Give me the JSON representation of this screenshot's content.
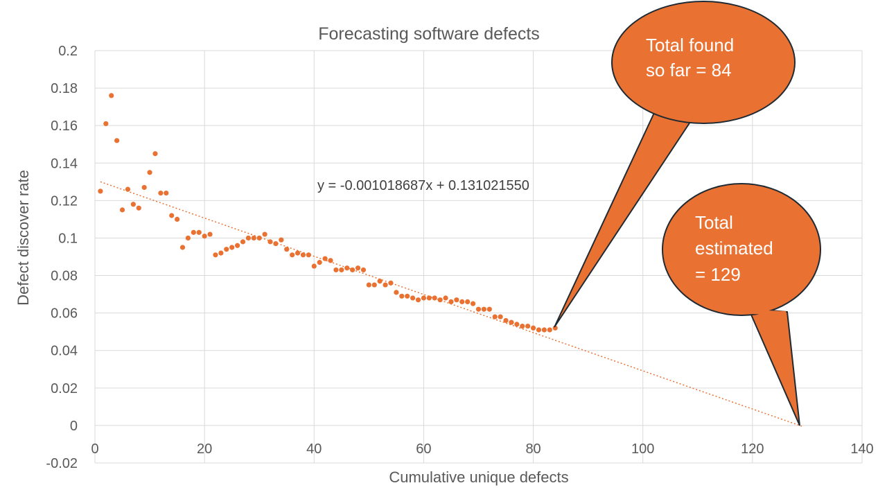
{
  "chart_data": {
    "type": "scatter",
    "title": "Forecasting software defects",
    "xlabel": "Cumulative unique defects",
    "ylabel": "Defect discover rate",
    "xlim": [
      0,
      140
    ],
    "ylim": [
      -0.02,
      0.2
    ],
    "x_ticks": [
      "0",
      "20",
      "40",
      "60",
      "80",
      "100",
      "120",
      "140"
    ],
    "y_ticks": [
      "-0.02",
      "0",
      "0.02",
      "0.04",
      "0.06",
      "0.08",
      "0.1",
      "0.12",
      "0.14",
      "0.16",
      "0.18",
      "0.2"
    ],
    "grid": true,
    "series": [
      {
        "name": "Defect discover rate",
        "color": "#E97132",
        "x": [
          1,
          2,
          3,
          4,
          5,
          6,
          7,
          8,
          9,
          10,
          11,
          12,
          13,
          14,
          15,
          16,
          17,
          18,
          19,
          20,
          21,
          22,
          23,
          24,
          25,
          26,
          27,
          28,
          29,
          30,
          31,
          32,
          33,
          34,
          35,
          36,
          37,
          38,
          39,
          40,
          41,
          42,
          43,
          44,
          45,
          46,
          47,
          48,
          49,
          50,
          51,
          52,
          53,
          54,
          55,
          56,
          57,
          58,
          59,
          60,
          61,
          62,
          63,
          64,
          65,
          66,
          67,
          68,
          69,
          70,
          71,
          72,
          73,
          74,
          75,
          76,
          77,
          78,
          79,
          80,
          81,
          82,
          83,
          84
        ],
        "y": [
          0.125,
          0.161,
          0.176,
          0.152,
          0.115,
          0.126,
          0.118,
          0.116,
          0.127,
          0.135,
          0.145,
          0.124,
          0.124,
          0.112,
          0.11,
          0.095,
          0.1,
          0.103,
          0.103,
          0.101,
          0.102,
          0.091,
          0.092,
          0.094,
          0.095,
          0.096,
          0.098,
          0.1,
          0.1,
          0.1,
          0.102,
          0.098,
          0.097,
          0.099,
          0.094,
          0.091,
          0.092,
          0.091,
          0.091,
          0.085,
          0.087,
          0.089,
          0.088,
          0.083,
          0.083,
          0.084,
          0.083,
          0.084,
          0.083,
          0.075,
          0.075,
          0.077,
          0.075,
          0.076,
          0.071,
          0.069,
          0.069,
          0.068,
          0.067,
          0.068,
          0.068,
          0.068,
          0.067,
          0.068,
          0.066,
          0.067,
          0.066,
          0.066,
          0.065,
          0.062,
          0.062,
          0.062,
          0.058,
          0.058,
          0.056,
          0.055,
          0.054,
          0.053,
          0.053,
          0.052,
          0.051,
          0.051,
          0.051,
          0.052
        ]
      }
    ],
    "trendline": {
      "slope": -0.001018687,
      "intercept": 0.13102155,
      "x_range": [
        1,
        129
      ],
      "equation_label": "y = -0.001018687x + 0.131021550"
    },
    "annotations": [
      {
        "lines": [
          "Total found",
          "so far = 84"
        ],
        "points_to": [
          84,
          0.052
        ]
      },
      {
        "lines": [
          "Total",
          "estimated",
          "= 129"
        ],
        "points_to": [
          129,
          0
        ]
      }
    ],
    "callout_color": "#E97132"
  }
}
